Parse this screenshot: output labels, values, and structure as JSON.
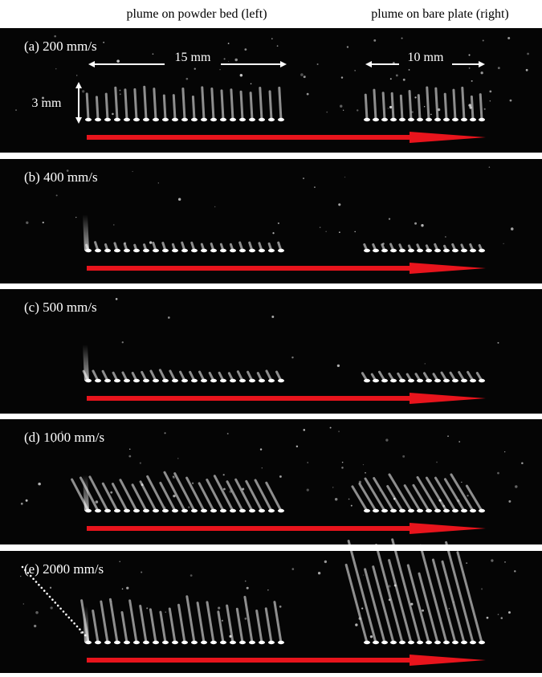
{
  "header": {
    "left": "plume on powder bed (left)",
    "right": "plume on bare plate (right)"
  },
  "panels": [
    {
      "label": "(a) 200 mm/s"
    },
    {
      "label": "(b) 400 mm/s"
    },
    {
      "label": "(c) 500 mm/s"
    },
    {
      "label": "(d) 1000 mm/s"
    },
    {
      "label": "(e) 2000 mm/s"
    }
  ],
  "scale": {
    "left_width": "15 mm",
    "right_width": "10 mm",
    "height": "3 mm"
  }
}
